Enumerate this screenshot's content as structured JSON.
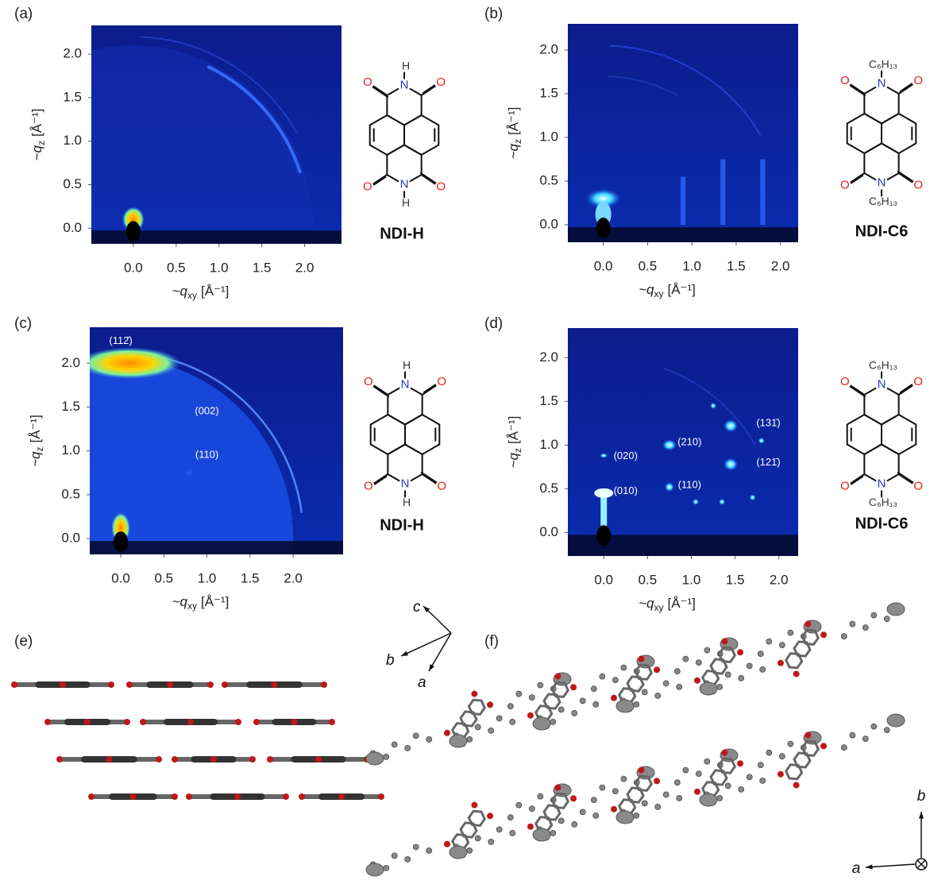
{
  "panels": [
    {
      "label": "(a)",
      "kind": "giwaxs",
      "xlim": [
        -0.49,
        2.43
      ],
      "ylim": [
        -0.18,
        2.33
      ],
      "xticks": [
        {
          "value": 0,
          "label": "0.0"
        },
        0.5,
        {
          "value": 1,
          "label": "1.0"
        },
        1.5,
        {
          "value": 2,
          "label": "2.0"
        }
      ],
      "yticks": [
        {
          "value": 0,
          "label": "0.0"
        },
        0.5,
        {
          "value": 1,
          "label": "1.0"
        },
        1.5,
        {
          "value": 2,
          "label": "2.0"
        }
      ],
      "x_label": {
        "symbol": "~q",
        "subscript": "xy",
        "unit": "[Å⁻¹]"
      },
      "y_label": {
        "symbol": "~q",
        "subscript": "z",
        "unit": "[Å⁻¹]"
      },
      "molecule": {
        "name": "NDI-H",
        "substituent": "H",
        "nitrogen": "N",
        "oxygen": "O"
      },
      "peaks": []
    },
    {
      "label": "(b)",
      "kind": "giwaxs",
      "xlim": [
        -0.4,
        2.2
      ],
      "ylim": [
        -0.2,
        2.3
      ],
      "xticks": [
        {
          "value": 0,
          "label": "0.0"
        },
        0.5,
        {
          "value": 1,
          "label": "1.0"
        },
        1.5,
        {
          "value": 2,
          "label": "2.0"
        }
      ],
      "yticks": [
        {
          "value": 0,
          "label": "0.0"
        },
        0.5,
        {
          "value": 1,
          "label": "1.0"
        },
        1.5,
        {
          "value": 2,
          "label": "2.0"
        }
      ],
      "x_label": {
        "symbol": "~q",
        "subscript": "xy",
        "unit": "[Å⁻¹]"
      },
      "y_label": {
        "symbol": "~q",
        "subscript": "z",
        "unit": "[Å⁻¹]"
      },
      "molecule": {
        "name": "NDI-C6",
        "substituent": "C₆H₁₃",
        "nitrogen": "N",
        "oxygen": "O"
      },
      "peaks": []
    },
    {
      "label": "(c)",
      "kind": "giwaxs",
      "xlim": [
        -0.36,
        2.58
      ],
      "ylim": [
        -0.18,
        2.41
      ],
      "xticks": [
        {
          "value": 0,
          "label": "0.0"
        },
        0.5,
        {
          "value": 1,
          "label": "1.0"
        },
        1.5,
        {
          "value": 2,
          "label": "2.0"
        }
      ],
      "yticks": [
        {
          "value": 0,
          "label": "0.0"
        },
        0.5,
        {
          "value": 1,
          "label": "1.0"
        },
        1.5,
        {
          "value": 2,
          "label": "2.0"
        }
      ],
      "x_label": {
        "symbol": "~q",
        "subscript": "xy",
        "unit": "[Å⁻¹]"
      },
      "y_label": {
        "symbol": "~q",
        "subscript": "z",
        "unit": "[Å⁻¹]"
      },
      "molecule": {
        "name": "NDI-H",
        "substituent": "H",
        "nitrogen": "N",
        "oxygen": "O"
      },
      "peaks": [
        "(112̄)",
        "(002)",
        "(110)"
      ]
    },
    {
      "label": "(d)",
      "kind": "giwaxs",
      "xlim": [
        -0.41,
        2.22
      ],
      "ylim": [
        -0.27,
        2.34
      ],
      "xticks": [
        {
          "value": 0,
          "label": "0.0"
        },
        0.5,
        {
          "value": 1,
          "label": "1.0"
        },
        1.5,
        {
          "value": 2,
          "label": "2.0"
        }
      ],
      "yticks": [
        {
          "value": 0,
          "label": "0.0"
        },
        0.5,
        {
          "value": 1,
          "label": "1.0"
        },
        1.5,
        {
          "value": 2,
          "label": "2.0"
        }
      ],
      "x_label": {
        "symbol": "~q",
        "subscript": "xy",
        "unit": "[Å⁻¹]"
      },
      "y_label": {
        "symbol": "~q",
        "subscript": "z",
        "unit": "[Å⁻¹]"
      },
      "molecule": {
        "name": "NDI-C6",
        "substituent": "C₆H₁₃",
        "nitrogen": "N",
        "oxygen": "O"
      },
      "peaks": [
        "(010)",
        "(020)",
        "(210)",
        "(110)",
        "(131̄)",
        "(121̄)"
      ]
    },
    {
      "label": "(e)",
      "kind": "packing",
      "axes": [
        "c",
        "b",
        "a"
      ]
    },
    {
      "label": "(f)",
      "kind": "packing",
      "axes": [
        "b",
        "a"
      ]
    }
  ]
}
